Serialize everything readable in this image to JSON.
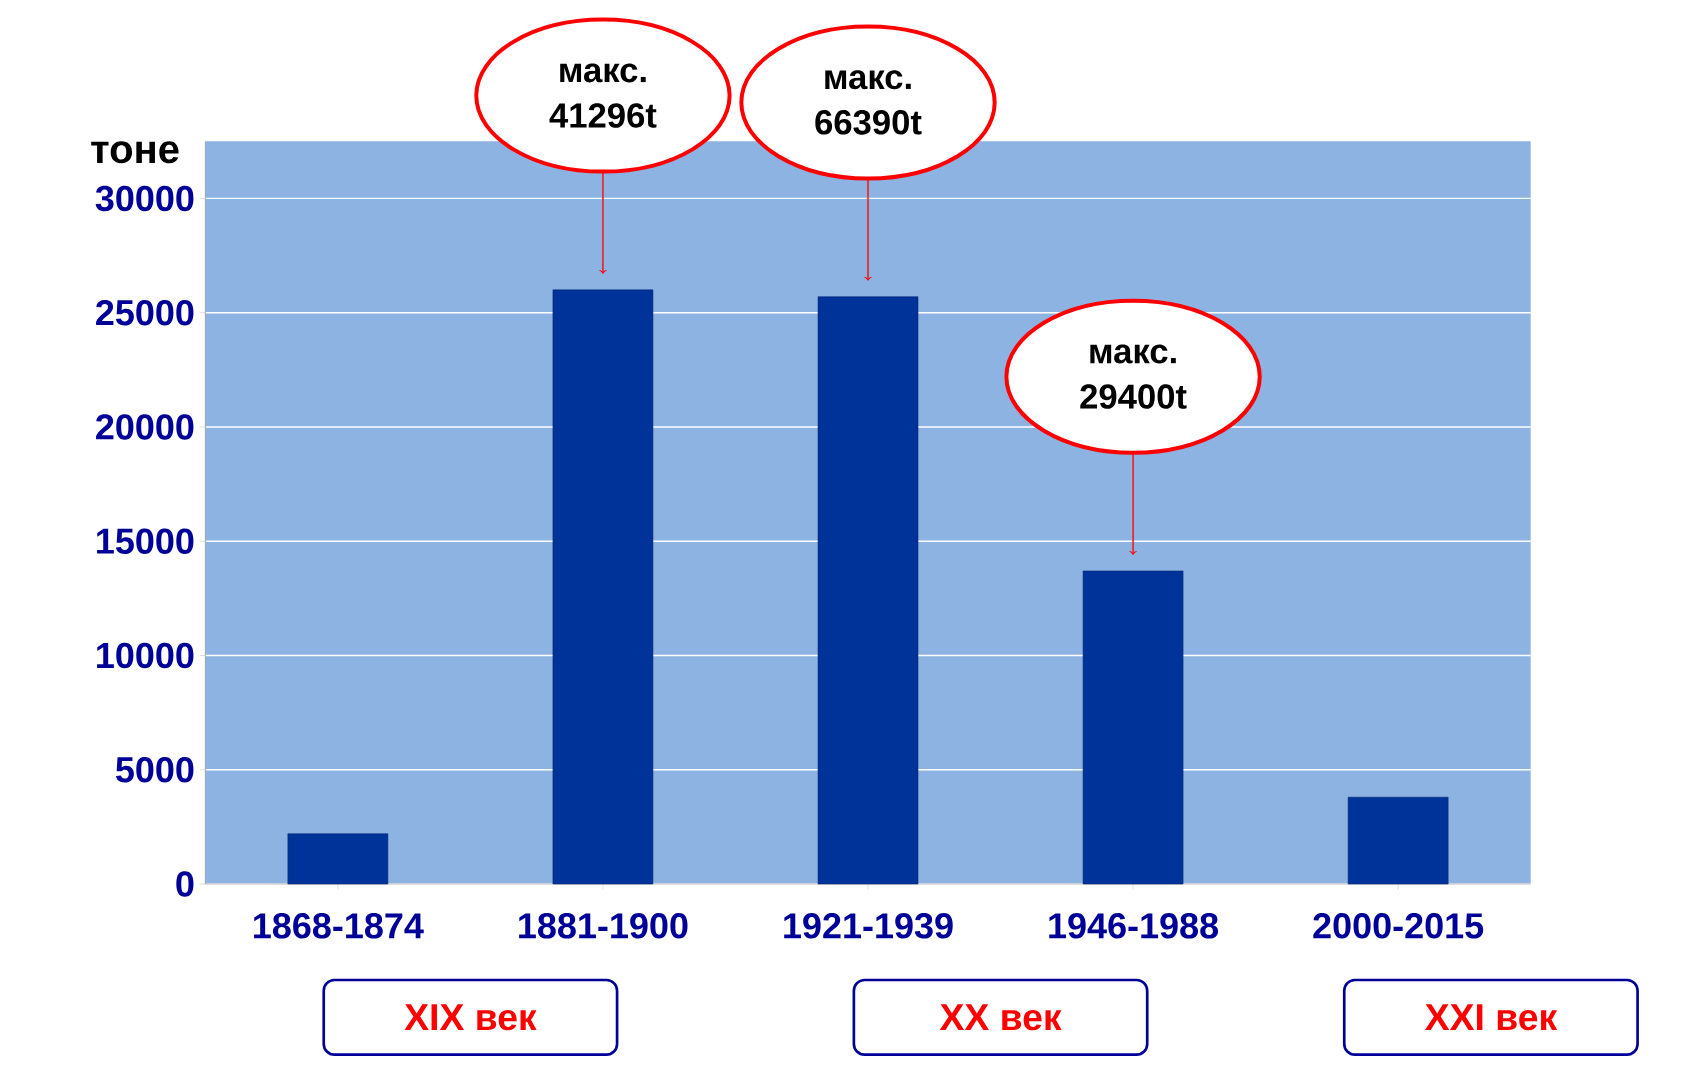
{
  "chart_data": {
    "type": "bar",
    "ylabel": "тоне",
    "categories": [
      "1868-1874",
      "1881-1900",
      "1921-1939",
      "1946-1988",
      "2000-2015"
    ],
    "values": [
      2200,
      26000,
      25700,
      13700,
      3800
    ],
    "color": "#003399",
    "ylim": [
      0,
      32500
    ],
    "yticks": [
      0,
      5000,
      10000,
      15000,
      20000,
      25000,
      30000
    ],
    "grid": "y",
    "annotations": [
      "макс. 41296t",
      "макс. 66390t",
      "макс. 29400t",
      "XIX век",
      "XX век",
      "XXI век"
    ]
  }
}
